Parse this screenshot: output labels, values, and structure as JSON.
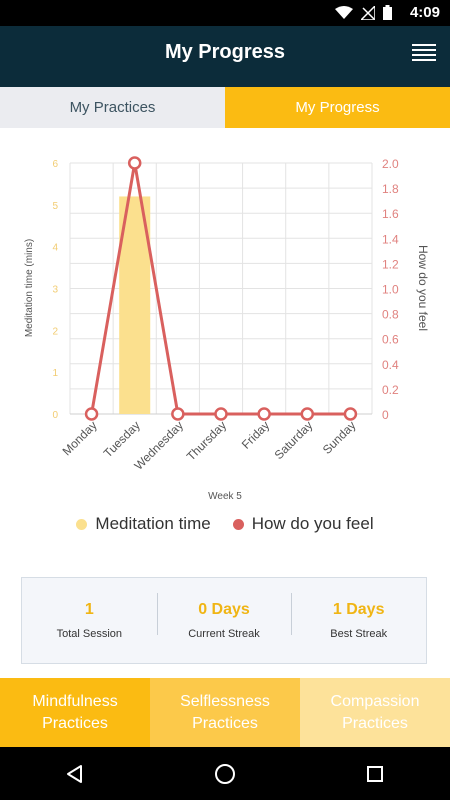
{
  "status_bar": {
    "time": "4:09",
    "icons": [
      "wifi-icon",
      "no-signal-icon",
      "battery-icon"
    ]
  },
  "app_bar": {
    "title": "My Progress",
    "menu_icon": "hamburger-menu-icon"
  },
  "tabs": [
    {
      "label": "My Practices",
      "active": false
    },
    {
      "label": "My Progress",
      "active": true
    }
  ],
  "chart_data": {
    "type": "bar",
    "categories": [
      "Monday",
      "Tuesday",
      "Wednesday",
      "Thursday",
      "Friday",
      "Saturday",
      "Sunday"
    ],
    "xlabel": "Week 5",
    "ylabel": "Meditation time (mins)",
    "y2label": "How do you feel",
    "ylim": [
      0,
      6
    ],
    "y2lim": [
      0,
      2.0
    ],
    "yticks": [
      "0",
      "1",
      "2",
      "3",
      "4",
      "5",
      "6"
    ],
    "y2ticks": [
      "0",
      "0.2",
      "0.4",
      "0.6",
      "0.8",
      "1.0",
      "1.2",
      "1.4",
      "1.6",
      "1.8",
      "2.0"
    ],
    "grid": true,
    "legend_position": "bottom",
    "series": [
      {
        "name": "Meditation time",
        "type": "bar",
        "axis": "left",
        "color": "#fbe08e",
        "values": [
          0,
          5.2,
          0,
          0,
          0,
          0,
          0
        ]
      },
      {
        "name": "How do you feel",
        "type": "line",
        "axis": "right",
        "color": "#d9605e",
        "values": [
          0,
          2.0,
          0,
          0,
          0,
          0,
          0
        ]
      }
    ]
  },
  "legend": [
    {
      "label": "Meditation time",
      "color": "#fbe08e"
    },
    {
      "label": "How do you feel",
      "color": "#d9605e"
    }
  ],
  "stats": [
    {
      "value": "1",
      "label": "Total Session"
    },
    {
      "value": "0 Days",
      "label": "Current Streak"
    },
    {
      "value": "1 Days",
      "label": "Best Streak"
    }
  ],
  "practices": [
    {
      "label": "Mindfulness Practices",
      "color": "#fbbb12"
    },
    {
      "label": "Selflessness Practices",
      "color": "#fcc94a"
    },
    {
      "label": "Compassion Practices",
      "color": "#fde29a"
    }
  ],
  "nav": {
    "back_icon": "back-triangle-icon",
    "home_icon": "home-circle-icon",
    "recents_icon": "recents-square-icon"
  }
}
